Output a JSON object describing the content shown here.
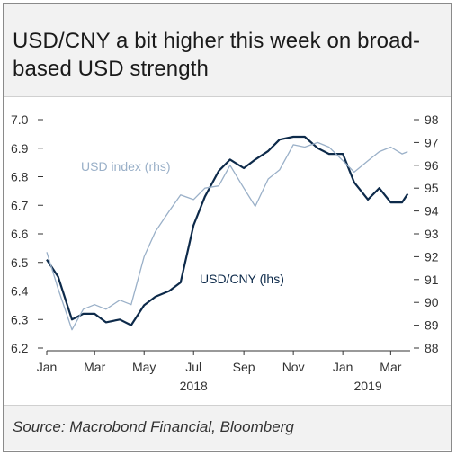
{
  "title": "USD/CNY a bit higher this week on broad-based USD strength",
  "source": "Source: Macrobond Financial, Bloomberg",
  "colors": {
    "usdcny": "#0d2a4a",
    "usd_index": "#9ab0c8",
    "axis": "#333333",
    "tick_text": "#333333"
  },
  "chart_data": {
    "type": "line",
    "title": "USD/CNY a bit higher this week on broad-based USD strength",
    "x_ticks": [
      "Jan",
      "Mar",
      "May",
      "Jul",
      "Sep",
      "Nov",
      "Jan",
      "Mar"
    ],
    "x_year_labels": [
      "2018",
      "2019"
    ],
    "y_left": {
      "ticks": [
        "6.2",
        "6.3",
        "6.4",
        "6.5",
        "6.6",
        "6.7",
        "6.8",
        "6.9",
        "7.0"
      ],
      "lim": [
        6.2,
        7.0
      ]
    },
    "y_right": {
      "ticks": [
        "88",
        "89",
        "90",
        "91",
        "92",
        "93",
        "94",
        "95",
        "96",
        "97",
        "98"
      ],
      "lim": [
        88,
        98
      ]
    },
    "series": [
      {
        "name": "USD/CNY (lhs)",
        "axis": "left",
        "x": [
          "2018-01-01",
          "2018-01-15",
          "2018-02-01",
          "2018-02-15",
          "2018-03-01",
          "2018-03-15",
          "2018-04-01",
          "2018-04-15",
          "2018-05-01",
          "2018-05-15",
          "2018-06-01",
          "2018-06-15",
          "2018-07-01",
          "2018-07-15",
          "2018-08-01",
          "2018-08-15",
          "2018-09-01",
          "2018-09-15",
          "2018-10-01",
          "2018-10-15",
          "2018-11-01",
          "2018-11-15",
          "2018-12-01",
          "2018-12-15",
          "2019-01-01",
          "2019-01-15",
          "2019-02-01",
          "2019-02-15",
          "2019-03-01",
          "2019-03-15",
          "2019-03-22"
        ],
        "values": [
          6.51,
          6.45,
          6.3,
          6.32,
          6.32,
          6.29,
          6.3,
          6.28,
          6.35,
          6.38,
          6.4,
          6.43,
          6.63,
          6.73,
          6.82,
          6.86,
          6.83,
          6.86,
          6.89,
          6.93,
          6.94,
          6.94,
          6.9,
          6.88,
          6.88,
          6.78,
          6.72,
          6.76,
          6.71,
          6.71,
          6.74
        ]
      },
      {
        "name": "USD index (rhs)",
        "axis": "right",
        "x": [
          "2018-01-01",
          "2018-01-15",
          "2018-02-01",
          "2018-02-15",
          "2018-03-01",
          "2018-03-15",
          "2018-04-01",
          "2018-04-15",
          "2018-05-01",
          "2018-05-15",
          "2018-06-01",
          "2018-06-15",
          "2018-07-01",
          "2018-07-15",
          "2018-08-01",
          "2018-08-15",
          "2018-09-01",
          "2018-09-15",
          "2018-10-01",
          "2018-10-15",
          "2018-11-01",
          "2018-11-15",
          "2018-12-01",
          "2018-12-15",
          "2019-01-01",
          "2019-01-15",
          "2019-02-01",
          "2019-02-15",
          "2019-03-01",
          "2019-03-15",
          "2019-03-22"
        ],
        "values": [
          92.2,
          90.6,
          88.8,
          89.7,
          89.9,
          89.7,
          90.1,
          89.9,
          92.0,
          93.1,
          94.0,
          94.7,
          94.5,
          95.0,
          95.1,
          96.0,
          95.0,
          94.2,
          95.4,
          95.8,
          96.9,
          96.8,
          97.0,
          96.8,
          96.2,
          95.7,
          96.2,
          96.6,
          96.8,
          96.5,
          96.6
        ]
      }
    ],
    "annotations": [
      "USD/CNY (lhs)",
      "USD index (rhs)"
    ],
    "grid": false
  }
}
